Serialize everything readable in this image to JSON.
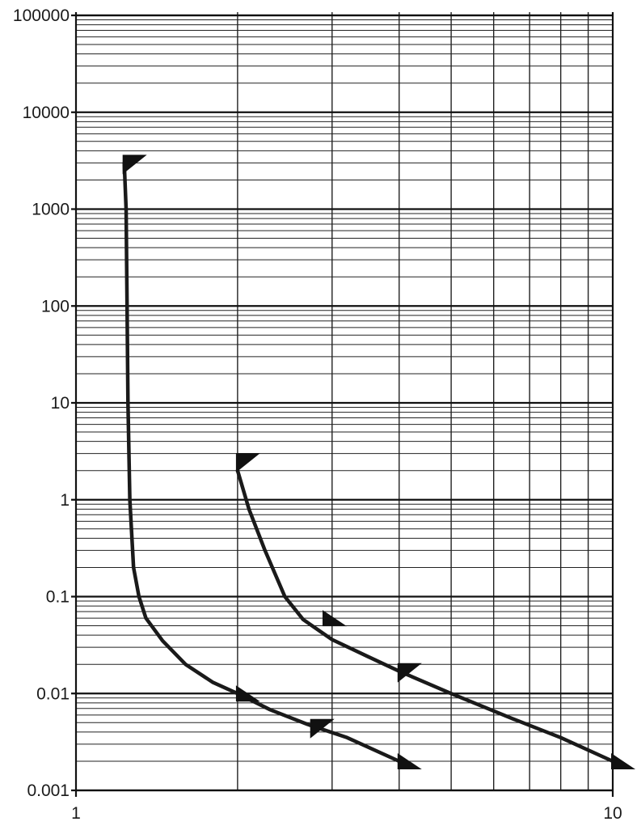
{
  "chart_data": {
    "type": "line",
    "title": "",
    "xlabel": "",
    "ylabel": "",
    "x_scale": "log",
    "y_scale": "log",
    "xlim": [
      1,
      10
    ],
    "ylim": [
      0.001,
      100000
    ],
    "x_tick_labels": [
      {
        "value": 1,
        "label": "1"
      },
      {
        "value": 10,
        "label": "10"
      }
    ],
    "y_tick_labels": [
      {
        "value": 0.001,
        "label": "0.001"
      },
      {
        "value": 0.01,
        "label": "0.01"
      },
      {
        "value": 0.1,
        "label": "0.1"
      },
      {
        "value": 1,
        "label": "1"
      },
      {
        "value": 10,
        "label": "10"
      },
      {
        "value": 100,
        "label": "100"
      },
      {
        "value": 1000,
        "label": "1000"
      },
      {
        "value": 10000,
        "label": "10000"
      },
      {
        "value": 100000,
        "label": "100000"
      }
    ],
    "grid": true,
    "series": [
      {
        "points": [
          [
            1.23,
            3000
          ],
          [
            1.24,
            1000
          ],
          [
            1.245,
            100
          ],
          [
            1.25,
            10
          ],
          [
            1.26,
            1
          ],
          [
            1.28,
            0.2
          ],
          [
            1.31,
            0.1
          ],
          [
            1.35,
            0.06
          ],
          [
            1.45,
            0.035
          ],
          [
            1.6,
            0.02
          ],
          [
            1.8,
            0.013
          ],
          [
            2.0,
            0.01
          ],
          [
            2.3,
            0.0068
          ],
          [
            2.7,
            0.0048
          ],
          [
            3.2,
            0.0035
          ],
          [
            4.0,
            0.002
          ]
        ],
        "markers": [
          {
            "x": 1.23,
            "y": 3000
          },
          {
            "x": 2.0,
            "y": 0.01
          },
          {
            "x": 2.75,
            "y": 0.0045
          },
          {
            "x": 4.0,
            "y": 0.002
          }
        ]
      },
      {
        "points": [
          [
            2.0,
            2.0
          ],
          [
            2.1,
            0.8
          ],
          [
            2.25,
            0.3
          ],
          [
            2.45,
            0.1
          ],
          [
            2.65,
            0.058
          ],
          [
            3.0,
            0.036
          ],
          [
            3.5,
            0.024
          ],
          [
            4.0,
            0.017
          ],
          [
            5.0,
            0.01
          ],
          [
            6.5,
            0.0055
          ],
          [
            8.0,
            0.0035
          ],
          [
            10.0,
            0.002
          ]
        ],
        "markers": [
          {
            "x": 2.0,
            "y": 2.5
          },
          {
            "x": 2.9,
            "y": 0.06
          },
          {
            "x": 4.0,
            "y": 0.017
          },
          {
            "x": 10.0,
            "y": 0.002
          }
        ]
      }
    ]
  }
}
